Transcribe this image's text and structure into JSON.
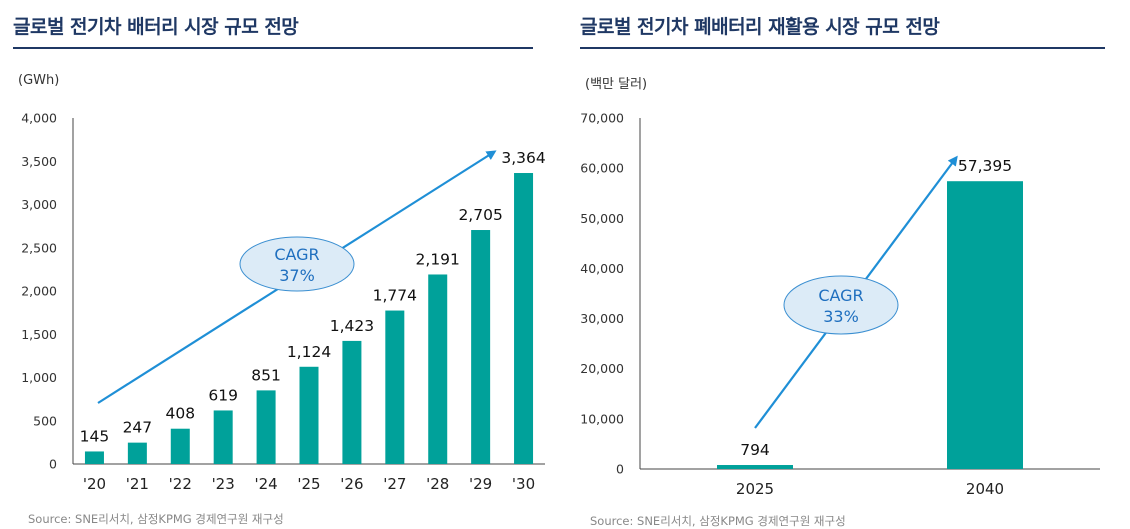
{
  "colors": {
    "bar": "#00a19a",
    "title": "#1f3864",
    "arrow": "#1f8fd6",
    "bubble_fill": "#dcebf7",
    "bubble_stroke": "#3b8fd1",
    "bubble_text": "#1f6fbf",
    "axis": "#444444",
    "source_text": "#888888"
  },
  "left": {
    "title": "글로벌 전기차 배터리 시장 규모 전망",
    "unit": "(GWh)",
    "source": "Source: SNE리서치, 삼정KPMG 경제연구원 재구성",
    "cagr": {
      "line1": "CAGR",
      "line2": "37%"
    }
  },
  "right": {
    "title": "글로벌 전기차 폐배터리 재활용 시장 규모 전망",
    "unit": "(백만 달러)",
    "source": "Source: SNE리서치, 삼정KPMG 경제연구원 재구성",
    "cagr": {
      "line1": "CAGR",
      "line2": "33%"
    }
  },
  "chart_data": [
    {
      "type": "bar",
      "title": "글로벌 전기차 배터리 시장 규모 전망",
      "ylabel": "(GWh)",
      "categories": [
        "'20",
        "'21",
        "'22",
        "'23",
        "'24",
        "'25",
        "'26",
        "'27",
        "'28",
        "'29",
        "'30"
      ],
      "values": [
        145,
        247,
        408,
        619,
        851,
        1124,
        1423,
        1774,
        2191,
        2705,
        3364
      ],
      "value_labels": [
        "145",
        "247",
        "408",
        "619",
        "851",
        "1,124",
        "1,423",
        "1,774",
        "2,191",
        "2,705",
        "3,364"
      ],
      "ylim": [
        0,
        4000
      ],
      "yticks": [
        0,
        500,
        1000,
        1500,
        2000,
        2500,
        3000,
        3500,
        4000
      ],
      "ytick_labels": [
        "0",
        "500",
        "1,000",
        "1,500",
        "2,000",
        "2,500",
        "3,000",
        "3,500",
        "4,000"
      ],
      "grid": false,
      "annotation": "CAGR 37%"
    },
    {
      "type": "bar",
      "title": "글로벌 전기차 폐배터리 재활용 시장 규모 전망",
      "ylabel": "(백만 달러)",
      "categories": [
        "2025",
        "2040"
      ],
      "values": [
        794,
        57395
      ],
      "value_labels": [
        "794",
        "57,395"
      ],
      "ylim": [
        0,
        70000
      ],
      "yticks": [
        0,
        10000,
        20000,
        30000,
        40000,
        50000,
        60000,
        70000
      ],
      "ytick_labels": [
        "0",
        "10,000",
        "20,000",
        "30,000",
        "40,000",
        "50,000",
        "60,000",
        "70,000"
      ],
      "grid": false,
      "annotation": "CAGR 33%"
    }
  ]
}
